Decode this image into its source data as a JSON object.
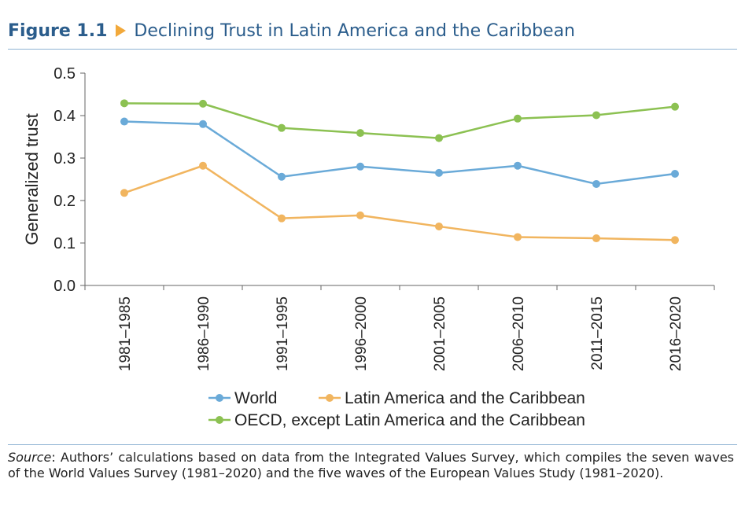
{
  "figure": {
    "label": "Figure 1.1",
    "title": "Declining Trust in Latin America and the Caribbean",
    "source_label": "Source",
    "source_text": ": Authors’ calculations based on data from the Integrated Values Survey, which compiles the seven waves of the World Values Survey (1981–2020) and the five waves of the European Values Study (1981–2020)."
  },
  "chart_data": {
    "type": "line",
    "ylabel": "Generalized trust",
    "xlabel": "",
    "ylim": [
      0.0,
      0.5
    ],
    "yticks": [
      "0.0",
      "0.1",
      "0.2",
      "0.3",
      "0.4",
      "0.5"
    ],
    "grid": false,
    "legend_position": "bottom",
    "categories": [
      "1981–1985",
      "1986–1990",
      "1991–1995",
      "1996–2000",
      "2001–2005",
      "2006–2010",
      "2011–2015",
      "2016–2020"
    ],
    "series": [
      {
        "name": "World",
        "color": "#6aaad8",
        "values": [
          0.386,
          0.38,
          0.256,
          0.28,
          0.265,
          0.282,
          0.239,
          0.263
        ]
      },
      {
        "name": "Latin America and the Caribbean",
        "color": "#f1b55f",
        "values": [
          0.218,
          0.282,
          0.158,
          0.165,
          0.139,
          0.114,
          0.111,
          0.107
        ]
      },
      {
        "name": "OECD, except Latin America and the Caribbean",
        "color": "#8cc152",
        "values": [
          0.429,
          0.428,
          0.371,
          0.359,
          0.347,
          0.393,
          0.401,
          0.421
        ]
      }
    ]
  }
}
